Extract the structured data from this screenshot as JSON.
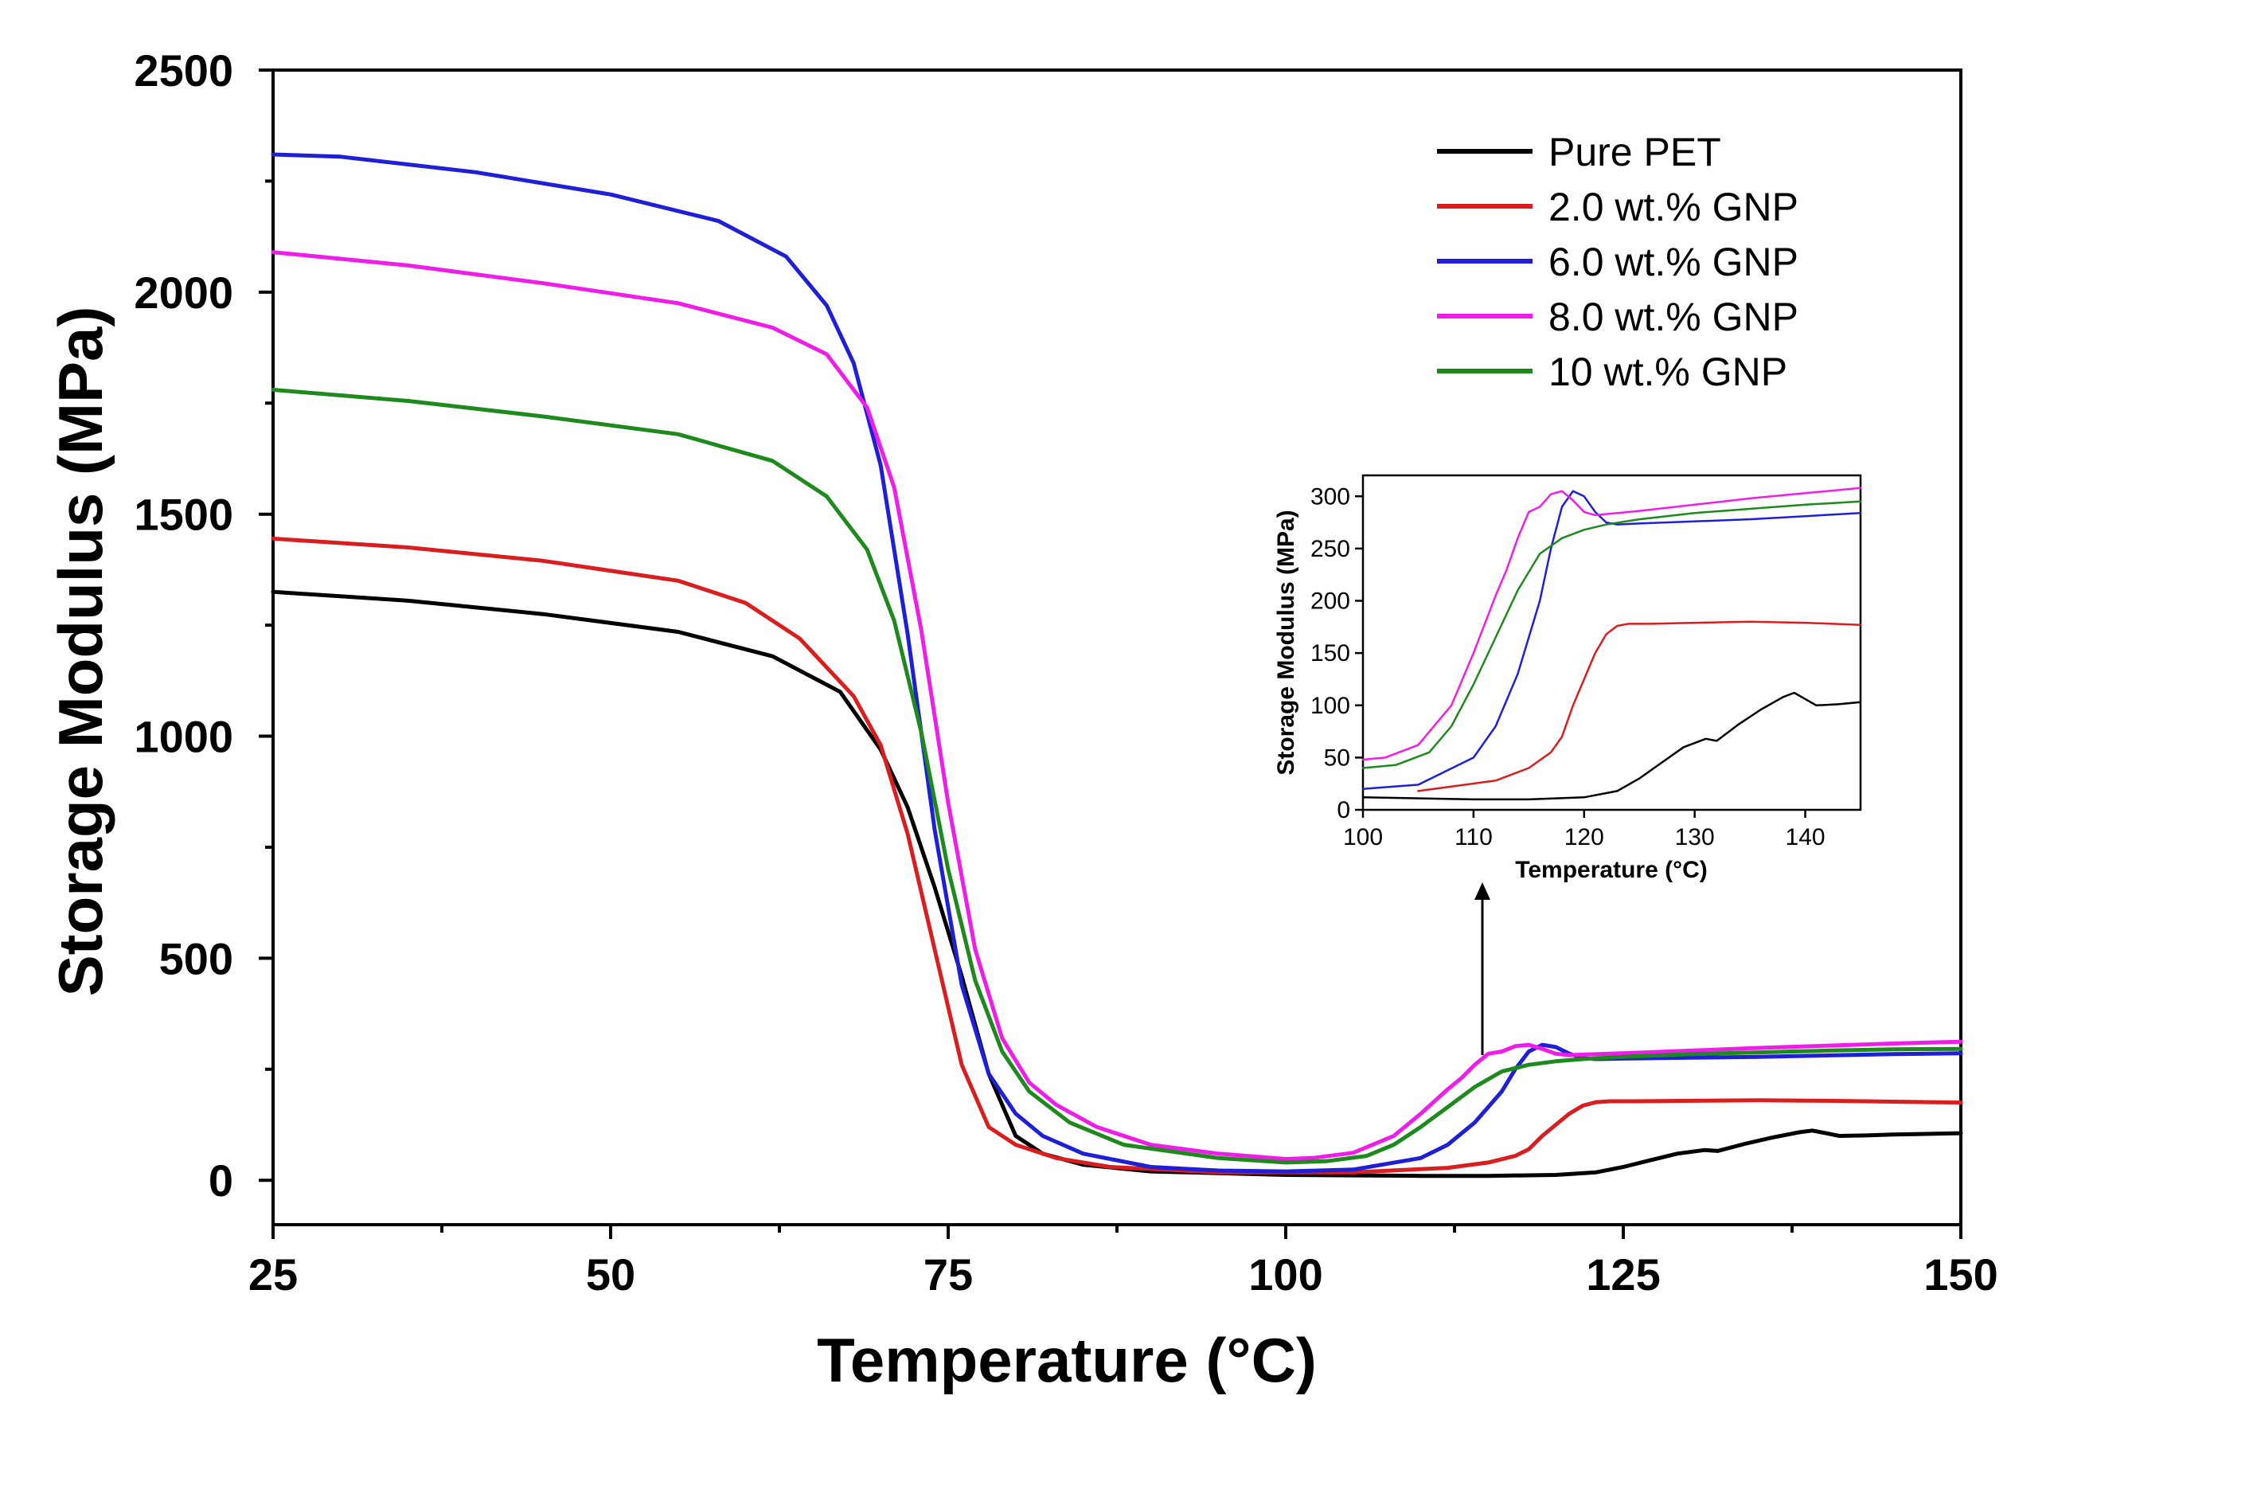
{
  "chart_data": {
    "type": "line",
    "xlabel": "Temperature (°C)",
    "ylabel": "Storage Modulus (MPa)",
    "xlim": [
      25,
      150
    ],
    "ylim": [
      -100,
      2500
    ],
    "xticks": [
      "25",
      "50",
      "75",
      "100",
      "125",
      "150"
    ],
    "yticks": [
      "0",
      "500",
      "1000",
      "1500",
      "2000",
      "2500"
    ],
    "legend_position": "top-right",
    "series": [
      {
        "name": "Pure PET",
        "color": "#000000",
        "x": [
          25,
          35,
          45,
          55,
          62,
          67,
          70,
          72,
          74,
          76,
          78,
          80,
          82,
          85,
          90,
          100,
          110,
          115,
          120,
          123,
          125,
          127,
          129,
          131,
          132,
          134,
          136,
          138,
          139,
          140,
          141,
          143,
          145,
          150
        ],
        "y": [
          1325,
          1305,
          1275,
          1235,
          1180,
          1100,
          970,
          840,
          660,
          460,
          240,
          100,
          60,
          35,
          20,
          12,
          10,
          10,
          12,
          18,
          30,
          45,
          60,
          68,
          66,
          82,
          96,
          108,
          112,
          106,
          100,
          101,
          103,
          106
        ]
      },
      {
        "name": "2.0 wt.% GNP",
        "color": "#d81e1e",
        "x": [
          25,
          35,
          45,
          55,
          60,
          64,
          68,
          70,
          72,
          74,
          76,
          78,
          80,
          83,
          87,
          95,
          105,
          112,
          115,
          117,
          118,
          119,
          120,
          121,
          122,
          123,
          124,
          126,
          130,
          135,
          140,
          145,
          150
        ],
        "y": [
          1445,
          1425,
          1395,
          1350,
          1300,
          1220,
          1090,
          980,
          780,
          520,
          260,
          120,
          80,
          50,
          30,
          18,
          18,
          28,
          40,
          55,
          70,
          100,
          125,
          150,
          168,
          176,
          178,
          178,
          179,
          180,
          179,
          177,
          175
        ]
      },
      {
        "name": "6.0 wt.% GNP",
        "color": "#1f1fd6",
        "x": [
          25,
          30,
          40,
          50,
          58,
          63,
          66,
          68,
          70,
          72,
          74,
          76,
          78,
          80,
          82,
          85,
          90,
          95,
          100,
          105,
          110,
          112,
          114,
          116,
          117,
          118,
          119,
          120,
          121,
          122,
          123,
          125,
          130,
          135,
          140,
          145,
          150
        ],
        "y": [
          2310,
          2305,
          2270,
          2220,
          2160,
          2080,
          1970,
          1840,
          1610,
          1230,
          790,
          440,
          240,
          150,
          100,
          60,
          30,
          22,
          20,
          24,
          50,
          80,
          130,
          200,
          250,
          290,
          305,
          300,
          285,
          275,
          273,
          274,
          276,
          278,
          281,
          284,
          286
        ]
      },
      {
        "name": "8.0 wt.% GNP",
        "color": "#ee1ee8",
        "x": [
          25,
          35,
          45,
          55,
          62,
          66,
          69,
          71,
          73,
          75,
          77,
          79,
          81,
          83,
          86,
          90,
          95,
          100,
          102,
          105,
          108,
          110,
          112,
          113,
          114,
          115,
          116,
          117,
          118,
          119,
          120,
          121,
          125,
          130,
          135,
          140,
          145,
          150
        ],
        "y": [
          2090,
          2060,
          2020,
          1975,
          1920,
          1860,
          1740,
          1560,
          1240,
          850,
          520,
          320,
          220,
          170,
          120,
          80,
          60,
          48,
          50,
          62,
          100,
          150,
          205,
          230,
          260,
          285,
          290,
          302,
          305,
          296,
          285,
          282,
          286,
          292,
          298,
          303,
          308,
          312
        ]
      },
      {
        "name": "10  wt.% GNP",
        "color": "#1e8a1e",
        "x": [
          25,
          35,
          45,
          55,
          62,
          66,
          69,
          71,
          73,
          75,
          77,
          79,
          81,
          84,
          88,
          95,
          100,
          103,
          106,
          108,
          110,
          112,
          114,
          116,
          118,
          120,
          122,
          125,
          130,
          135,
          140,
          145,
          150
        ],
        "y": [
          1780,
          1755,
          1720,
          1680,
          1620,
          1540,
          1420,
          1260,
          1010,
          700,
          450,
          290,
          200,
          130,
          80,
          50,
          40,
          43,
          55,
          80,
          120,
          165,
          210,
          245,
          260,
          268,
          273,
          278,
          284,
          288,
          292,
          295,
          296
        ]
      }
    ],
    "inset": {
      "type": "line",
      "xlabel": "Temperature (°C)",
      "ylabel": "Storage Modulus (MPa)",
      "xlim": [
        100,
        145
      ],
      "ylim": [
        0,
        320
      ],
      "xticks": [
        "100",
        "110",
        "120",
        "130",
        "140"
      ],
      "yticks": [
        "0",
        "50",
        "100",
        "150",
        "200",
        "250",
        "300"
      ],
      "annotation": "arrow pointing from main plot near 115 °C to inset"
    }
  }
}
